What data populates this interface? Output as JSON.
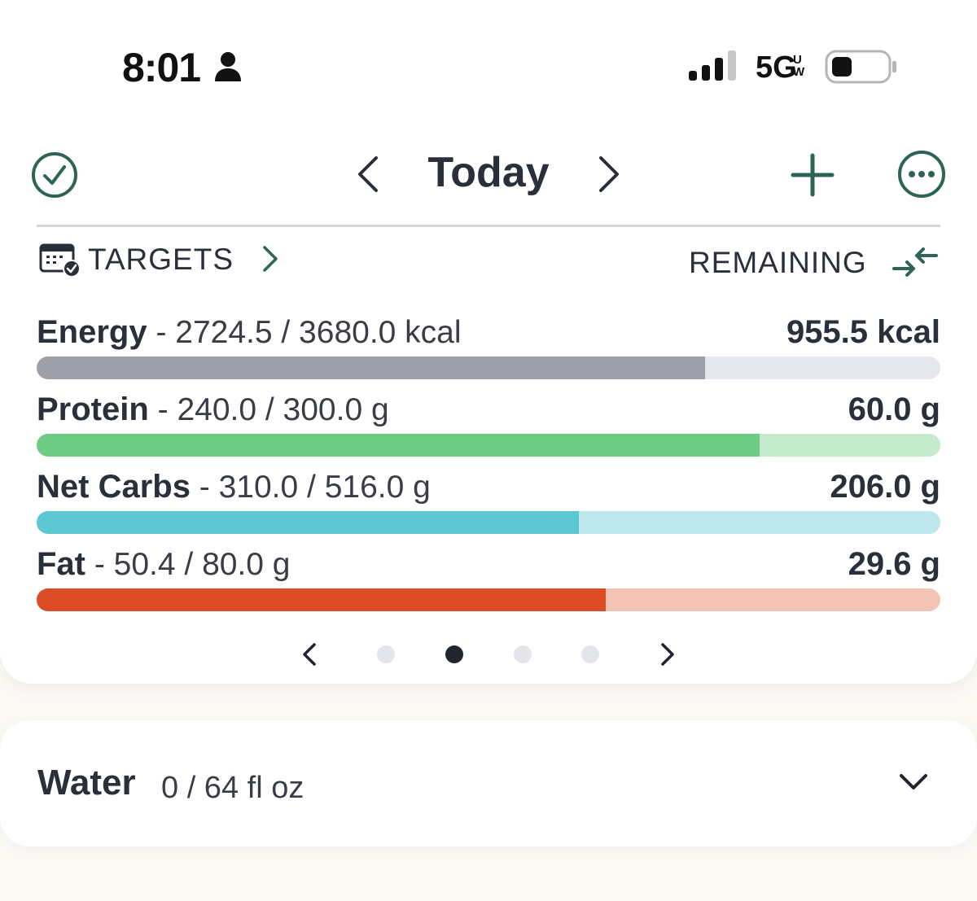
{
  "status_bar": {
    "time": "8:01",
    "network": "5G",
    "network_badge": "UW"
  },
  "header": {
    "title": "Today",
    "icons": [
      "check-circle-icon",
      "chevron-left-icon",
      "chevron-right-icon",
      "plus-icon",
      "more-icon"
    ]
  },
  "targets": {
    "label": "TARGETS",
    "mode_label": "REMAINING"
  },
  "macros": [
    {
      "name": "Energy",
      "detail": " - 2724.5 / 3680.0 kcal",
      "remaining": "955.5 kcal",
      "progress": 0.74,
      "color": "#9e9fa9",
      "track_color": "#e6e6ee"
    },
    {
      "name": "Protein",
      "detail": " - 240.0 / 300.0 g",
      "remaining": "60.0 g",
      "progress": 0.8,
      "color": "#6ecb86",
      "track_color": "#c4ebcc"
    },
    {
      "name": "Net Carbs",
      "detail": " - 310.0 / 516.0 g",
      "remaining": "206.0 g",
      "progress": 0.6,
      "color": "#5ec7d4",
      "track_color": "#bfe8ee"
    },
    {
      "name": "Fat",
      "detail": " - 50.4 / 80.0 g",
      "remaining": "29.6 g",
      "progress": 0.63,
      "color": "#db4b25",
      "track_color": "#f4c5b5"
    }
  ],
  "pager": {
    "pages": 4,
    "active": 1
  },
  "water": {
    "title": "Water",
    "amount": "0 / 64 fl oz"
  },
  "colors": {
    "accent": "#2d6457",
    "text": "#2b2f3a"
  }
}
